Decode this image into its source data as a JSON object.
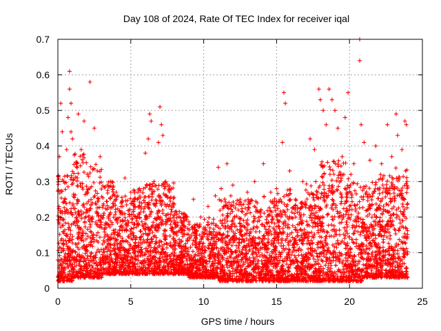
{
  "chart_data": {
    "type": "scatter",
    "title": "Day 108 of 2024, Rate Of TEC Index for receiver iqal",
    "xlabel": "GPS time / hours",
    "ylabel": "ROTI / TECUs",
    "xlim": [
      0,
      25
    ],
    "ylim": [
      0,
      0.7
    ],
    "xticks": [
      "0",
      "5",
      "10",
      "15",
      "20",
      "25"
    ],
    "yticks": [
      "0",
      "0.1",
      "0.2",
      "0.3",
      "0.4",
      "0.5",
      "0.6",
      "0.7"
    ],
    "grid": true,
    "marker": "+",
    "series": [
      {
        "name": "ROTI",
        "color": "#ff0000",
        "points": [
          [
            0.1,
            0.37
          ],
          [
            0.2,
            0.52
          ],
          [
            0.3,
            0.44
          ],
          [
            0.4,
            0.3
          ],
          [
            0.5,
            0.25
          ],
          [
            0.8,
            0.61
          ],
          [
            0.8,
            0.56
          ],
          [
            0.9,
            0.52
          ],
          [
            0.7,
            0.48
          ],
          [
            0.9,
            0.44
          ],
          [
            1.0,
            0.42
          ],
          [
            0.6,
            0.39
          ],
          [
            1.4,
            0.49
          ],
          [
            1.8,
            0.47
          ],
          [
            2.2,
            0.58
          ],
          [
            2.5,
            0.45
          ],
          [
            1.6,
            0.39
          ],
          [
            1.3,
            0.35
          ],
          [
            2.7,
            0.33
          ],
          [
            2.9,
            0.37
          ],
          [
            3.6,
            0.3
          ],
          [
            4.0,
            0.27
          ],
          [
            4.6,
            0.31
          ],
          [
            5.0,
            0.27
          ],
          [
            5.6,
            0.28
          ],
          [
            6.0,
            0.38
          ],
          [
            6.2,
            0.42
          ],
          [
            6.3,
            0.49
          ],
          [
            6.4,
            0.47
          ],
          [
            6.6,
            0.3
          ],
          [
            6.9,
            0.41
          ],
          [
            7.0,
            0.51
          ],
          [
            7.1,
            0.46
          ],
          [
            7.2,
            0.43
          ],
          [
            7.4,
            0.3
          ],
          [
            7.6,
            0.23
          ],
          [
            8.0,
            0.19
          ],
          [
            8.5,
            0.21
          ],
          [
            9.0,
            0.18
          ],
          [
            9.3,
            0.25
          ],
          [
            9.8,
            0.2
          ],
          [
            10.3,
            0.23
          ],
          [
            10.8,
            0.26
          ],
          [
            11.0,
            0.34
          ],
          [
            11.2,
            0.28
          ],
          [
            11.6,
            0.35
          ],
          [
            12.0,
            0.29
          ],
          [
            12.5,
            0.25
          ],
          [
            13.0,
            0.27
          ],
          [
            13.5,
            0.3
          ],
          [
            14.1,
            0.35
          ],
          [
            14.6,
            0.27
          ],
          [
            15.0,
            0.28
          ],
          [
            15.4,
            0.41
          ],
          [
            15.5,
            0.55
          ],
          [
            15.6,
            0.52
          ],
          [
            15.9,
            0.33
          ],
          [
            16.3,
            0.25
          ],
          [
            16.8,
            0.3
          ],
          [
            17.3,
            0.42
          ],
          [
            17.6,
            0.39
          ],
          [
            17.9,
            0.56
          ],
          [
            18.0,
            0.53
          ],
          [
            18.2,
            0.5
          ],
          [
            18.4,
            0.46
          ],
          [
            18.6,
            0.56
          ],
          [
            18.8,
            0.53
          ],
          [
            19.0,
            0.5
          ],
          [
            19.2,
            0.45
          ],
          [
            19.5,
            0.37
          ],
          [
            19.7,
            0.48
          ],
          [
            19.9,
            0.55
          ],
          [
            20.1,
            0.32
          ],
          [
            20.3,
            0.35
          ],
          [
            20.7,
            0.7
          ],
          [
            20.7,
            0.64
          ],
          [
            20.8,
            0.46
          ],
          [
            21.0,
            0.41
          ],
          [
            21.4,
            0.36
          ],
          [
            21.8,
            0.4
          ],
          [
            22.2,
            0.35
          ],
          [
            22.6,
            0.46
          ],
          [
            22.9,
            0.37
          ],
          [
            23.2,
            0.49
          ],
          [
            23.3,
            0.43
          ],
          [
            23.6,
            0.39
          ],
          [
            23.8,
            0.47
          ],
          [
            23.9,
            0.46
          ]
        ],
        "dense_band": {
          "x_range": [
            0,
            24
          ],
          "y_floor_by_hour": [
            0.02,
            0.03,
            0.03,
            0.04,
            0.04,
            0.04,
            0.04,
            0.04,
            0.04,
            0.03,
            0.03,
            0.02,
            0.02,
            0.02,
            0.02,
            0.02,
            0.02,
            0.02,
            0.02,
            0.02,
            0.02,
            0.03,
            0.03,
            0.03
          ],
          "y_ceiling_by_hour": [
            0.32,
            0.38,
            0.36,
            0.3,
            0.26,
            0.28,
            0.3,
            0.3,
            0.22,
            0.18,
            0.2,
            0.26,
            0.25,
            0.25,
            0.26,
            0.28,
            0.25,
            0.3,
            0.36,
            0.36,
            0.3,
            0.3,
            0.32,
            0.34
          ]
        }
      }
    ]
  }
}
